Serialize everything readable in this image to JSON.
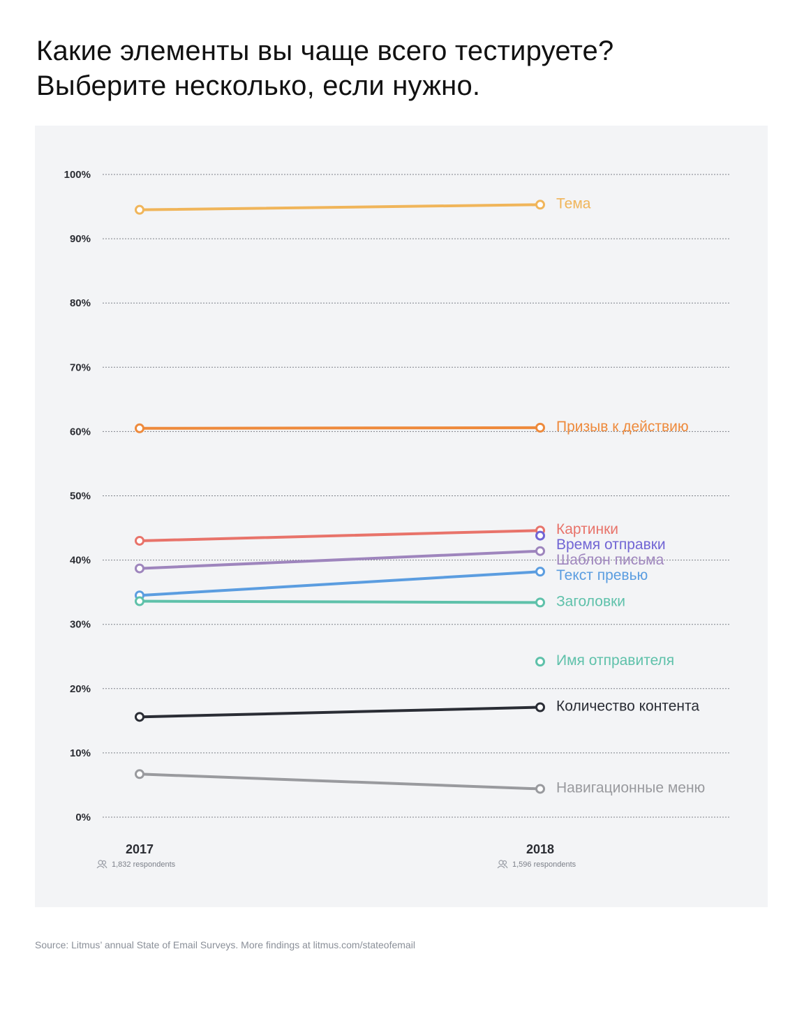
{
  "title": {
    "line1": "Какие элементы вы чаще всего тестируете?",
    "line2": "Выберите несколько, если нужно."
  },
  "source": "Source: Litmus’ annual State of Email Surveys. More findings at litmus.com/stateofemail",
  "chart_data": {
    "type": "line",
    "ylim": [
      0,
      100
    ],
    "yticks": [
      0,
      10,
      20,
      30,
      40,
      50,
      60,
      70,
      80,
      90,
      100
    ],
    "ytick_labels": [
      "0%",
      "10%",
      "20%",
      "30%",
      "40%",
      "50%",
      "60%",
      "70%",
      "80%",
      "90%",
      "100%"
    ],
    "grid": true,
    "x": [
      {
        "label": "2017",
        "respondents": "1,832 respondents"
      },
      {
        "label": "2018",
        "respondents": "1,596 respondents"
      }
    ],
    "series": [
      {
        "name": "Тема",
        "color": "#f0b55a",
        "values": [
          94.5,
          95.3
        ]
      },
      {
        "name": "Призыв к действию",
        "color": "#ee8a3c",
        "values": [
          60.5,
          60.6
        ]
      },
      {
        "name": "Картинки",
        "color": "#e8736a",
        "values": [
          43.0,
          44.6
        ]
      },
      {
        "name": "Время отправки",
        "color": "#7165d4",
        "values": [
          null,
          43.8
        ]
      },
      {
        "name": "Шаблон письма",
        "color": "#9e85bd",
        "values": [
          38.7,
          41.4
        ]
      },
      {
        "name": "Текст превью",
        "color": "#5b9de0",
        "values": [
          34.5,
          38.2
        ]
      },
      {
        "name": "Заголовки",
        "color": "#5ec1aa",
        "values": [
          33.6,
          33.4
        ]
      },
      {
        "name": "Имя отправителя",
        "color": "#5ec1aa",
        "values": [
          null,
          24.2
        ]
      },
      {
        "name": "Количество контента",
        "color": "#2a2d35",
        "values": [
          15.6,
          17.1
        ]
      },
      {
        "name": "Навигационные меню",
        "color": "#999a9e",
        "values": [
          6.7,
          4.4
        ]
      }
    ]
  }
}
